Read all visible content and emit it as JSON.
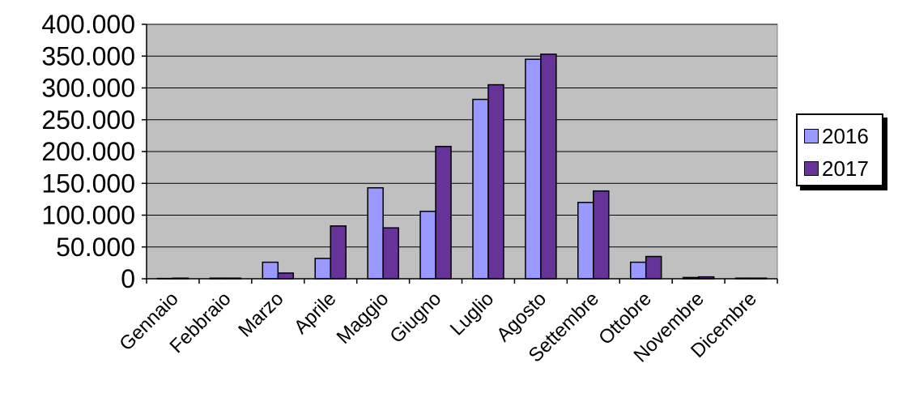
{
  "chart_data": {
    "type": "bar",
    "title": "",
    "xlabel": "",
    "ylabel": "",
    "categories": [
      "Gennaio",
      "Febbraio",
      "Marzo",
      "Aprile",
      "Maggio",
      "Giugno",
      "Luglio",
      "Agosto",
      "Settembre",
      "Ottobre",
      "Novembre",
      "Dicembre"
    ],
    "series": [
      {
        "name": "2016",
        "color": "#9999ff",
        "values": [
          500,
          1000,
          26000,
          32000,
          143000,
          106000,
          282000,
          345000,
          120000,
          26000,
          2000,
          1000
        ]
      },
      {
        "name": "2017",
        "color": "#663399",
        "values": [
          1000,
          1000,
          9000,
          83000,
          80000,
          208000,
          305000,
          353000,
          138000,
          35000,
          3000,
          1000
        ]
      }
    ],
    "ylim": [
      0,
      400000
    ],
    "yticks": [
      0,
      50000,
      100000,
      150000,
      200000,
      250000,
      300000,
      350000,
      400000
    ],
    "ytick_labels": [
      "0",
      "50.000",
      "100.000",
      "150.000",
      "200.000",
      "250.000",
      "300.000",
      "350.000",
      "400.000"
    ],
    "grid": true,
    "legend_position": "right",
    "plot_background": "#c0c0c0"
  }
}
